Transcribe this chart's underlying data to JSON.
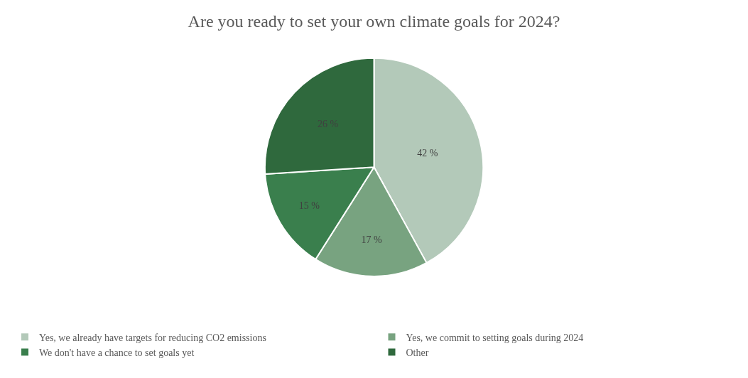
{
  "chart_data": {
    "type": "pie",
    "title": "Are you ready to set your own climate goals for 2024?",
    "categories": [
      "Yes, we already have targets for reducing CO2 emissions",
      "Yes, we commit to setting goals during 2024",
      "We don't have a chance to set goals yet",
      "Other"
    ],
    "values": [
      42,
      17,
      15,
      26
    ],
    "value_labels": [
      "42 %",
      "17 %",
      "15 %",
      "26 %"
    ],
    "colors": [
      "#b3c9b9",
      "#78a380",
      "#3a7f4d",
      "#2f693d"
    ],
    "legend": "bottom"
  }
}
